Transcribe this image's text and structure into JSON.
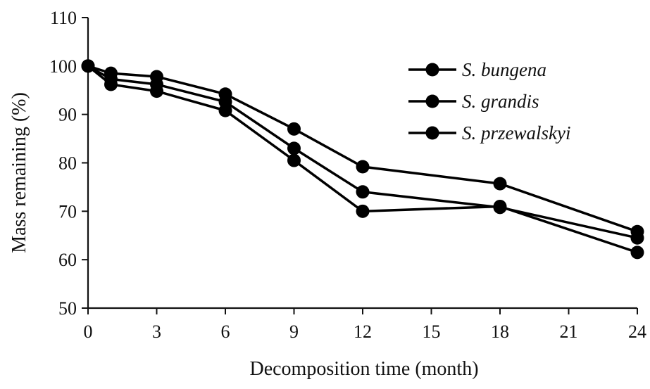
{
  "chart_data": {
    "type": "line",
    "title": "",
    "xlabel": "Decomposition time (month)",
    "ylabel": "Mass remaining  (%)",
    "xlim": [
      0,
      24
    ],
    "ylim": [
      50,
      110
    ],
    "x_ticks": [
      0,
      3,
      6,
      9,
      12,
      15,
      18,
      21,
      24
    ],
    "y_ticks": [
      50,
      60,
      70,
      80,
      90,
      100,
      110
    ],
    "grid": false,
    "legend_position": "top-right",
    "x": [
      0,
      1,
      3,
      6,
      9,
      12,
      18,
      24
    ],
    "series": [
      {
        "name": "S. bungena",
        "values": [
          100,
          98.5,
          97.8,
          94.2,
          87.0,
          79.2,
          75.7,
          65.8
        ]
      },
      {
        "name": "S. grandis",
        "values": [
          100,
          96.2,
          94.8,
          90.8,
          80.5,
          70.0,
          71.0,
          61.5
        ]
      },
      {
        "name": "S. przewalskyi",
        "values": [
          100,
          97.3,
          96.2,
          92.6,
          83.0,
          74.0,
          70.8,
          64.5
        ]
      }
    ],
    "colors": {
      "line": "#000000",
      "marker": "#000000",
      "axis": "#111111"
    }
  }
}
